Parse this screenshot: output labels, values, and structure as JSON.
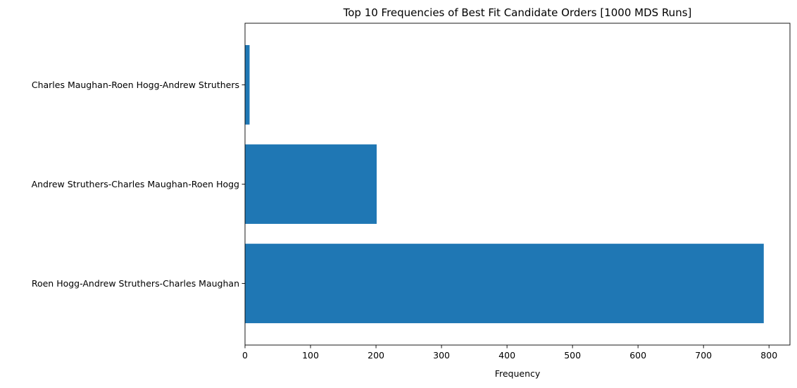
{
  "chart_data": {
    "type": "bar",
    "orientation": "horizontal",
    "title": "Top 10 Frequencies of Best Fit Candidate Orders [1000 MDS Runs]",
    "xlabel": "Frequency",
    "ylabel": "",
    "categories": [
      "Roen Hogg-Andrew Struthers-Charles Maughan",
      "Andrew Struthers-Charles Maughan-Roen Hogg",
      "Charles Maughan-Roen Hogg-Andrew Struthers"
    ],
    "values": [
      792,
      201,
      7
    ],
    "xlim": [
      0,
      832
    ],
    "xticks": [
      0,
      100,
      200,
      300,
      400,
      500,
      600,
      700,
      800
    ],
    "bar_color": "#1f77b4",
    "grid": false,
    "legend": "none"
  }
}
